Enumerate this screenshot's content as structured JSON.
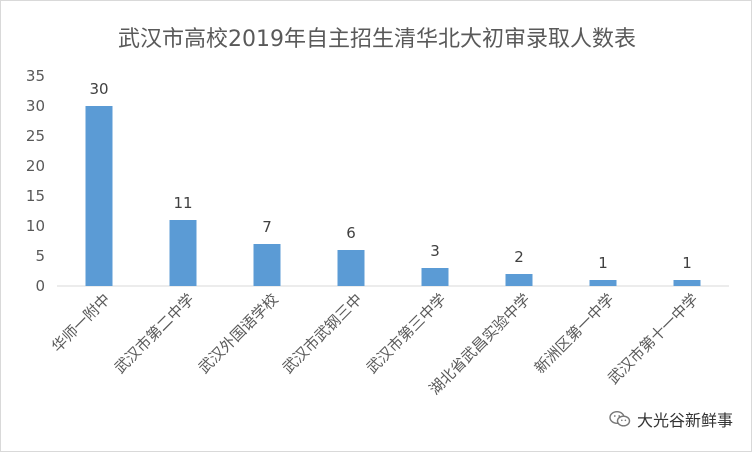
{
  "chart_data": {
    "type": "bar",
    "title": "武汉市高校2019年自主招生清华北大初审录取人数表",
    "categories": [
      "华师一附中",
      "武汉市第二中学",
      "武汉外国语学校",
      "武汉市武钢三中",
      "武汉市第三中学",
      "湖北省武昌实验中学",
      "新洲区第一中学",
      "武汉市第十一中学"
    ],
    "values": [
      30,
      11,
      7,
      6,
      3,
      2,
      1,
      1
    ],
    "ylim": [
      0,
      35
    ],
    "yticks": [
      0,
      5,
      10,
      15,
      20,
      25,
      30,
      35
    ],
    "grid": false,
    "legend": "none",
    "bar_color": "#5b9bd5",
    "text_color": "#595959"
  },
  "watermark": {
    "text": "大光谷新鲜事",
    "icon": "wechat-icon"
  }
}
